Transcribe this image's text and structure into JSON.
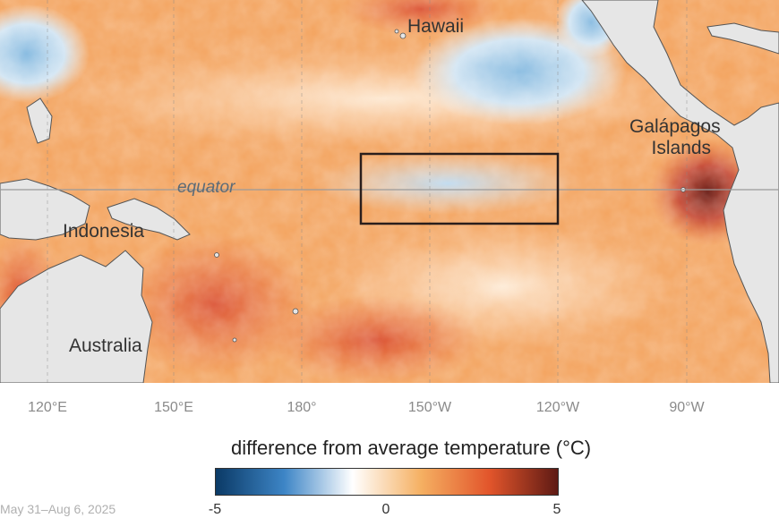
{
  "map": {
    "labels": {
      "hawaii": "Hawaii",
      "galapagos_line1": "Galápagos",
      "galapagos_line2": "Islands",
      "indonesia": "Indonesia",
      "australia": "Australia",
      "equator": "equator"
    },
    "longitude_ticks": [
      "120°E",
      "150°E",
      "180°",
      "150°W",
      "120°W",
      "90°W"
    ]
  },
  "legend": {
    "title": "difference from average temperature (°C)",
    "min_label": "-5",
    "mid_label": "0",
    "max_label": "5",
    "colors": [
      "#0b3a66",
      "#3d85c6",
      "#ffffff",
      "#f5b062",
      "#e2552b",
      "#5e1a14"
    ]
  },
  "date_range": "May 31–Aug 6, 2025",
  "colors": {
    "land": "#e6e6e6",
    "warm_anomaly": "#f4a35a",
    "cool_anomaly": "#8ec2e4",
    "box_outline": "#2a1e1c"
  }
}
